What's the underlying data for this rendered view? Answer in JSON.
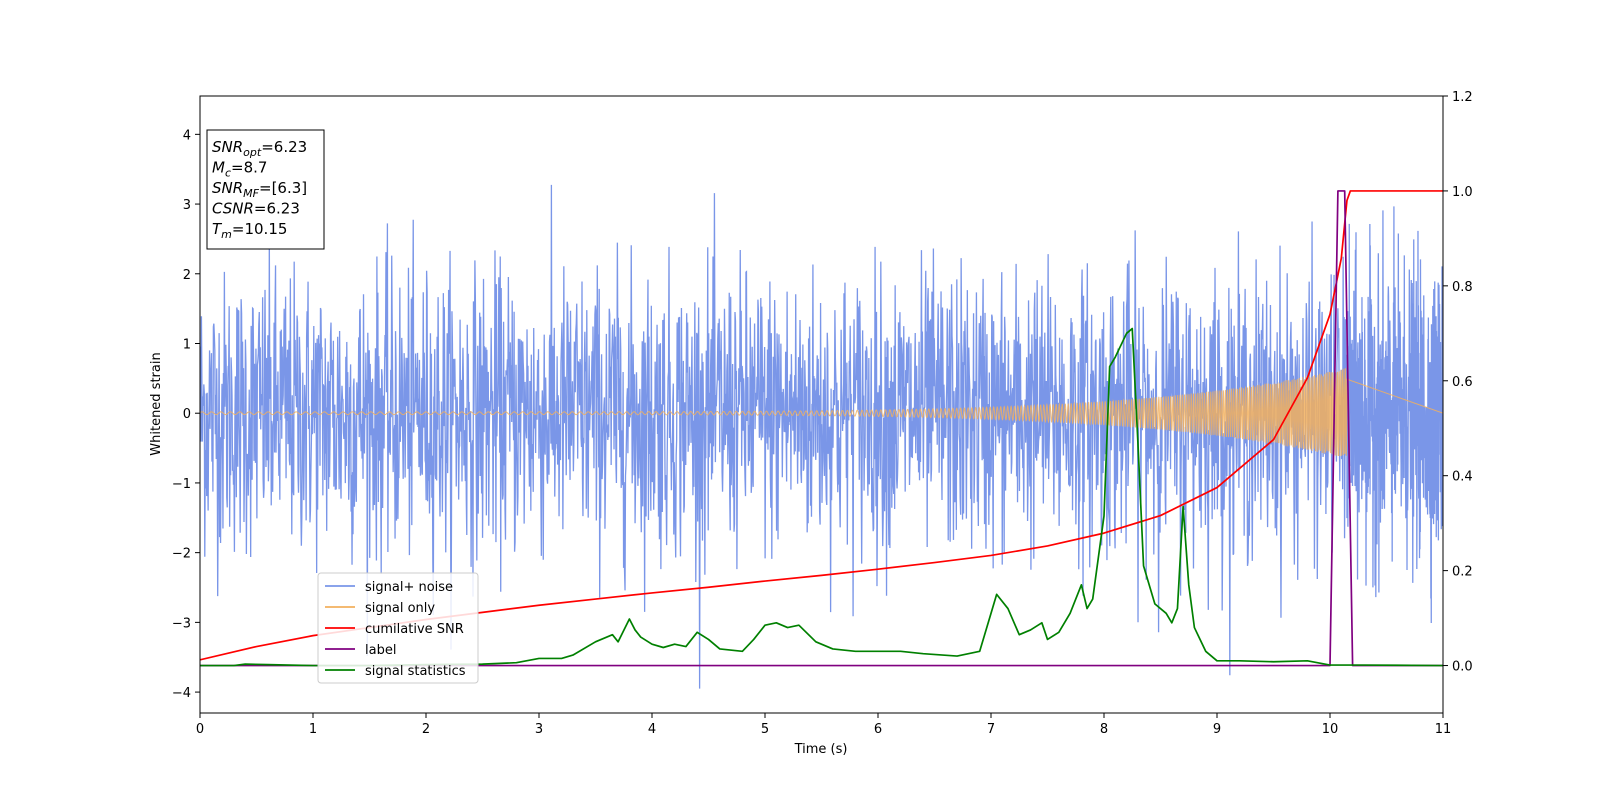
{
  "chart_data": {
    "type": "line",
    "xlabel": "Time (s)",
    "ylabel": "Whitened strain",
    "xlim": [
      0,
      11
    ],
    "ylim_left": [
      -4.3,
      4.55
    ],
    "ylim_right": [
      -0.1,
      1.2
    ],
    "x_ticks": [
      0,
      1,
      2,
      3,
      4,
      5,
      6,
      7,
      8,
      9,
      10,
      11
    ],
    "y_ticks_left": [
      -4,
      -3,
      -2,
      -1,
      0,
      1,
      2,
      3,
      4
    ],
    "y_ticks_right": [
      0.0,
      0.2,
      0.4,
      0.6,
      0.8,
      1.0,
      1.2
    ],
    "grid": false,
    "legend_position": "lower-left",
    "annotation": {
      "lines": [
        {
          "var": "SNR",
          "sub": "opt",
          "value": "=6.23"
        },
        {
          "var": "M",
          "sub": "c",
          "value": "=8.7"
        },
        {
          "var": "SNR",
          "sub": "MF",
          "value": "=[6.3]"
        },
        {
          "var": "CSNR",
          "sub": "",
          "value": "=6.23"
        },
        {
          "var": "T",
          "sub": "m",
          "value": "=10.15"
        }
      ]
    },
    "series": [
      {
        "name": "signal+ noise",
        "axis": "left",
        "color": "#7a96e8",
        "description_type": "noise",
        "noise_sigma": 1.0,
        "duration": 10.15
      },
      {
        "name": "signal only",
        "axis": "left",
        "color": "#f2b05e",
        "description_type": "chirp",
        "amplitude_start": 0.02,
        "amplitude_end": 0.65,
        "end_time": 10.15
      },
      {
        "name": "cumilative SNR",
        "axis": "right",
        "color": "#ff0000",
        "points": [
          [
            0,
            0.012
          ],
          [
            0.5,
            0.04
          ],
          [
            1,
            0.063
          ],
          [
            1.5,
            0.08
          ],
          [
            2,
            0.097
          ],
          [
            2.5,
            0.112
          ],
          [
            3,
            0.127
          ],
          [
            3.5,
            0.14
          ],
          [
            4,
            0.153
          ],
          [
            4.5,
            0.165
          ],
          [
            5,
            0.178
          ],
          [
            5.5,
            0.19
          ],
          [
            6,
            0.203
          ],
          [
            6.5,
            0.217
          ],
          [
            7,
            0.232
          ],
          [
            7.5,
            0.252
          ],
          [
            8,
            0.279
          ],
          [
            8.5,
            0.316
          ],
          [
            9,
            0.375
          ],
          [
            9.5,
            0.476
          ],
          [
            9.8,
            0.606
          ],
          [
            10,
            0.74
          ],
          [
            10.1,
            0.858
          ],
          [
            10.15,
            0.98
          ],
          [
            10.18,
            1.0
          ],
          [
            11,
            1.0
          ]
        ]
      },
      {
        "name": "label",
        "axis": "right",
        "color": "#800080",
        "points": [
          [
            0,
            0.0
          ],
          [
            10.0,
            0.0
          ],
          [
            10.07,
            1.0
          ],
          [
            10.13,
            1.0
          ],
          [
            10.2,
            0.0
          ],
          [
            11,
            0.0
          ]
        ]
      },
      {
        "name": "signal statistics",
        "axis": "right",
        "color": "#008000",
        "points": [
          [
            0,
            0.0
          ],
          [
            0.3,
            0.0
          ],
          [
            0.4,
            0.003
          ],
          [
            0.6,
            0.002
          ],
          [
            1.0,
            0.0
          ],
          [
            1.5,
            0.0
          ],
          [
            2.0,
            0.002
          ],
          [
            2.5,
            0.003
          ],
          [
            2.8,
            0.006
          ],
          [
            3.0,
            0.015
          ],
          [
            3.2,
            0.015
          ],
          [
            3.3,
            0.022
          ],
          [
            3.5,
            0.05
          ],
          [
            3.65,
            0.065
          ],
          [
            3.7,
            0.05
          ],
          [
            3.8,
            0.098
          ],
          [
            3.85,
            0.075
          ],
          [
            3.9,
            0.06
          ],
          [
            4.0,
            0.045
          ],
          [
            4.1,
            0.038
          ],
          [
            4.2,
            0.045
          ],
          [
            4.3,
            0.04
          ],
          [
            4.4,
            0.07
          ],
          [
            4.5,
            0.055
          ],
          [
            4.6,
            0.035
          ],
          [
            4.8,
            0.03
          ],
          [
            4.9,
            0.055
          ],
          [
            5.0,
            0.085
          ],
          [
            5.1,
            0.09
          ],
          [
            5.2,
            0.08
          ],
          [
            5.3,
            0.085
          ],
          [
            5.45,
            0.05
          ],
          [
            5.6,
            0.035
          ],
          [
            5.8,
            0.03
          ],
          [
            6.0,
            0.03
          ],
          [
            6.2,
            0.03
          ],
          [
            6.4,
            0.025
          ],
          [
            6.7,
            0.02
          ],
          [
            6.9,
            0.03
          ],
          [
            7.0,
            0.11
          ],
          [
            7.05,
            0.15
          ],
          [
            7.15,
            0.12
          ],
          [
            7.25,
            0.065
          ],
          [
            7.35,
            0.075
          ],
          [
            7.45,
            0.09
          ],
          [
            7.5,
            0.055
          ],
          [
            7.6,
            0.07
          ],
          [
            7.7,
            0.11
          ],
          [
            7.8,
            0.17
          ],
          [
            7.85,
            0.12
          ],
          [
            7.9,
            0.14
          ],
          [
            8.0,
            0.315
          ],
          [
            8.05,
            0.63
          ],
          [
            8.1,
            0.65
          ],
          [
            8.2,
            0.7
          ],
          [
            8.25,
            0.71
          ],
          [
            8.3,
            0.47
          ],
          [
            8.35,
            0.21
          ],
          [
            8.45,
            0.13
          ],
          [
            8.55,
            0.11
          ],
          [
            8.6,
            0.09
          ],
          [
            8.65,
            0.12
          ],
          [
            8.7,
            0.335
          ],
          [
            8.75,
            0.17
          ],
          [
            8.8,
            0.08
          ],
          [
            8.9,
            0.03
          ],
          [
            9.0,
            0.01
          ],
          [
            9.2,
            0.01
          ],
          [
            9.5,
            0.008
          ],
          [
            9.8,
            0.01
          ],
          [
            10.0,
            0.001
          ],
          [
            10.3,
            0.001
          ],
          [
            11,
            0.0
          ]
        ]
      }
    ]
  }
}
